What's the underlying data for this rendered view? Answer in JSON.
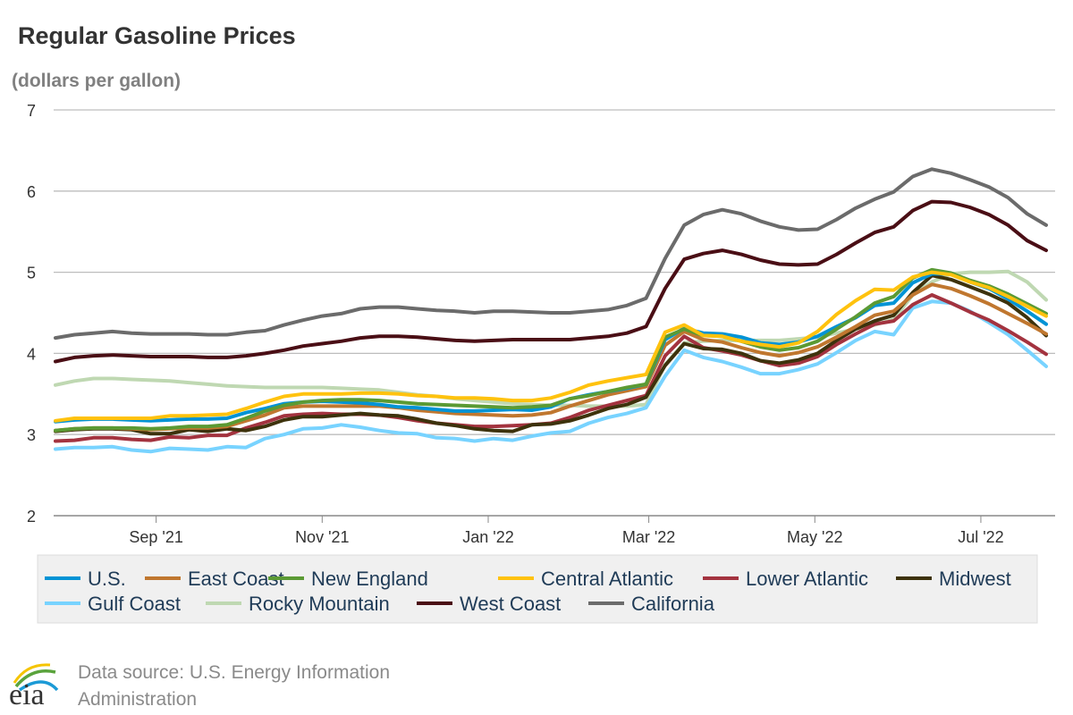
{
  "chart_data": {
    "type": "line",
    "title": "Regular Gasoline Prices",
    "subtitle": "(dollars per gallon)",
    "xlabel": "",
    "ylabel": "",
    "ylim": [
      2,
      7
    ],
    "yticks": [
      "2",
      "3",
      "4",
      "5",
      "6",
      "7"
    ],
    "xlim": [
      "2021-07-26",
      "2022-07-25"
    ],
    "xticks": [
      {
        "label": "Sep '21",
        "date": "2021-09-01"
      },
      {
        "label": "Nov '21",
        "date": "2021-11-01"
      },
      {
        "label": "Jan '22",
        "date": "2022-01-01"
      },
      {
        "label": "Mar '22",
        "date": "2022-03-01"
      },
      {
        "label": "May '22",
        "date": "2022-05-01"
      },
      {
        "label": "Jul '22",
        "date": "2022-07-01"
      }
    ],
    "grid": "horizontal",
    "legend_position": "bottom",
    "x_start": "2021-07-26",
    "x_frequency": "weekly",
    "series": [
      {
        "name": "U.S.",
        "color": "#0093d5",
        "values": [
          3.16,
          3.18,
          3.19,
          3.19,
          3.18,
          3.17,
          3.18,
          3.19,
          3.19,
          3.2,
          3.27,
          3.32,
          3.38,
          3.4,
          3.41,
          3.4,
          3.39,
          3.37,
          3.34,
          3.33,
          3.31,
          3.29,
          3.29,
          3.3,
          3.31,
          3.3,
          3.34,
          3.44,
          3.49,
          3.53,
          3.57,
          3.62,
          4.17,
          4.31,
          4.25,
          4.24,
          4.2,
          4.13,
          4.11,
          4.14,
          4.21,
          4.33,
          4.44,
          4.59,
          4.62,
          4.87,
          4.98,
          4.98,
          4.88,
          4.8,
          4.67,
          4.52,
          4.36
        ]
      },
      {
        "name": "East Coast",
        "color": "#c0772f",
        "values": [
          3.05,
          3.07,
          3.08,
          3.08,
          3.07,
          3.06,
          3.07,
          3.08,
          3.08,
          3.1,
          3.17,
          3.24,
          3.33,
          3.35,
          3.35,
          3.35,
          3.35,
          3.35,
          3.33,
          3.3,
          3.28,
          3.26,
          3.25,
          3.24,
          3.23,
          3.24,
          3.27,
          3.35,
          3.42,
          3.49,
          3.54,
          3.59,
          4.1,
          4.27,
          4.17,
          4.14,
          4.07,
          4.01,
          3.97,
          4.01,
          4.08,
          4.2,
          4.33,
          4.47,
          4.52,
          4.72,
          4.85,
          4.8,
          4.71,
          4.61,
          4.49,
          4.37,
          4.24
        ]
      },
      {
        "name": "New England",
        "color": "#5b9a34",
        "values": [
          3.05,
          3.07,
          3.08,
          3.08,
          3.08,
          3.07,
          3.08,
          3.1,
          3.1,
          3.12,
          3.2,
          3.29,
          3.36,
          3.4,
          3.42,
          3.43,
          3.43,
          3.42,
          3.4,
          3.38,
          3.37,
          3.36,
          3.35,
          3.34,
          3.33,
          3.34,
          3.36,
          3.44,
          3.48,
          3.53,
          3.58,
          3.62,
          4.2,
          4.3,
          4.22,
          4.21,
          4.15,
          4.08,
          4.04,
          4.07,
          4.15,
          4.3,
          4.45,
          4.62,
          4.7,
          4.93,
          5.03,
          4.99,
          4.9,
          4.83,
          4.73,
          4.61,
          4.49
        ]
      },
      {
        "name": "Central Atlantic",
        "color": "#ffc20e",
        "values": [
          3.17,
          3.2,
          3.2,
          3.2,
          3.2,
          3.2,
          3.23,
          3.23,
          3.24,
          3.25,
          3.32,
          3.4,
          3.47,
          3.5,
          3.5,
          3.5,
          3.51,
          3.51,
          3.5,
          3.48,
          3.47,
          3.45,
          3.45,
          3.44,
          3.42,
          3.42,
          3.45,
          3.52,
          3.61,
          3.66,
          3.7,
          3.74,
          4.26,
          4.35,
          4.22,
          4.21,
          4.15,
          4.11,
          4.08,
          4.13,
          4.27,
          4.48,
          4.65,
          4.79,
          4.78,
          4.94,
          5.0,
          4.97,
          4.88,
          4.81,
          4.7,
          4.58,
          4.46
        ]
      },
      {
        "name": "Lower Atlantic",
        "color": "#a3333f",
        "values": [
          2.92,
          2.93,
          2.96,
          2.96,
          2.94,
          2.93,
          2.97,
          2.96,
          2.99,
          2.99,
          3.08,
          3.15,
          3.23,
          3.25,
          3.26,
          3.25,
          3.25,
          3.24,
          3.21,
          3.17,
          3.14,
          3.12,
          3.1,
          3.1,
          3.11,
          3.12,
          3.14,
          3.21,
          3.3,
          3.36,
          3.42,
          3.48,
          3.97,
          4.21,
          4.07,
          4.03,
          3.98,
          3.91,
          3.85,
          3.88,
          3.96,
          4.11,
          4.24,
          4.36,
          4.4,
          4.6,
          4.72,
          4.62,
          4.51,
          4.41,
          4.28,
          4.14,
          3.99
        ]
      },
      {
        "name": "Midwest",
        "color": "#3d320c",
        "values": [
          3.04,
          3.06,
          3.07,
          3.07,
          3.06,
          3.01,
          3.01,
          3.06,
          3.04,
          3.07,
          3.05,
          3.1,
          3.18,
          3.22,
          3.22,
          3.24,
          3.26,
          3.24,
          3.23,
          3.19,
          3.14,
          3.11,
          3.07,
          3.05,
          3.04,
          3.12,
          3.13,
          3.17,
          3.24,
          3.32,
          3.37,
          3.46,
          3.85,
          4.12,
          4.06,
          4.05,
          4.0,
          3.91,
          3.88,
          3.92,
          4.0,
          4.16,
          4.3,
          4.4,
          4.47,
          4.75,
          4.96,
          4.91,
          4.82,
          4.73,
          4.62,
          4.44,
          4.22
        ]
      },
      {
        "name": "Gulf Coast",
        "color": "#78d3ff",
        "values": [
          2.82,
          2.84,
          2.84,
          2.85,
          2.81,
          2.79,
          2.83,
          2.82,
          2.81,
          2.85,
          2.84,
          2.95,
          3.0,
          3.07,
          3.08,
          3.12,
          3.09,
          3.05,
          3.02,
          3.01,
          2.96,
          2.95,
          2.92,
          2.95,
          2.93,
          2.98,
          3.02,
          3.04,
          3.14,
          3.21,
          3.26,
          3.33,
          3.72,
          4.04,
          3.95,
          3.9,
          3.83,
          3.75,
          3.75,
          3.8,
          3.87,
          4.01,
          4.16,
          4.27,
          4.23,
          4.56,
          4.64,
          4.62,
          4.52,
          4.38,
          4.23,
          4.04,
          3.84
        ]
      },
      {
        "name": "Rocky Mountain",
        "color": "#bfd8b2",
        "values": [
          3.61,
          3.66,
          3.69,
          3.69,
          3.68,
          3.67,
          3.66,
          3.64,
          3.62,
          3.6,
          3.59,
          3.58,
          3.58,
          3.58,
          3.58,
          3.57,
          3.56,
          3.55,
          3.52,
          3.49,
          3.47,
          3.44,
          3.42,
          3.4,
          3.38,
          3.37,
          3.36,
          3.36,
          3.35,
          3.35,
          3.35,
          3.37,
          3.86,
          4.13,
          4.15,
          4.16,
          4.16,
          4.16,
          4.16,
          4.18,
          4.2,
          4.25,
          4.3,
          4.35,
          4.42,
          4.72,
          4.88,
          4.98,
          5.0,
          5.0,
          5.01,
          4.88,
          4.66
        ]
      },
      {
        "name": "West Coast",
        "color": "#4a0e15",
        "values": [
          3.9,
          3.95,
          3.97,
          3.98,
          3.97,
          3.96,
          3.96,
          3.96,
          3.95,
          3.95,
          3.97,
          4.0,
          4.04,
          4.09,
          4.12,
          4.15,
          4.19,
          4.21,
          4.21,
          4.2,
          4.18,
          4.16,
          4.15,
          4.16,
          4.17,
          4.17,
          4.17,
          4.17,
          4.19,
          4.21,
          4.25,
          4.33,
          4.8,
          5.16,
          5.23,
          5.27,
          5.22,
          5.15,
          5.1,
          5.09,
          5.1,
          5.22,
          5.36,
          5.49,
          5.56,
          5.76,
          5.87,
          5.86,
          5.8,
          5.71,
          5.58,
          5.39,
          5.27
        ]
      },
      {
        "name": "California",
        "color": "#6b6b6b",
        "values": [
          4.19,
          4.23,
          4.25,
          4.27,
          4.25,
          4.24,
          4.24,
          4.24,
          4.23,
          4.23,
          4.26,
          4.28,
          4.35,
          4.41,
          4.46,
          4.49,
          4.55,
          4.57,
          4.57,
          4.55,
          4.53,
          4.52,
          4.5,
          4.52,
          4.52,
          4.51,
          4.5,
          4.5,
          4.52,
          4.54,
          4.59,
          4.68,
          5.17,
          5.58,
          5.71,
          5.77,
          5.72,
          5.63,
          5.56,
          5.52,
          5.53,
          5.65,
          5.79,
          5.9,
          5.99,
          6.18,
          6.27,
          6.22,
          6.14,
          6.05,
          5.92,
          5.72,
          5.58
        ]
      }
    ]
  },
  "footer": {
    "source_line1": "Data source: U.S. Energy Information",
    "source_line2": "Administration",
    "logo_text": "eia"
  }
}
